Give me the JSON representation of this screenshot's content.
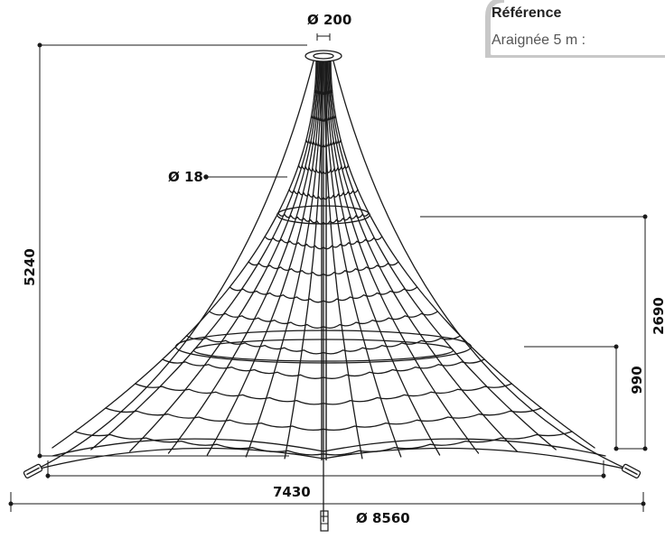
{
  "reference": {
    "title": "Référence",
    "value": "Araignée 5 m :"
  },
  "dimensions": {
    "top_diameter": "Ø 200",
    "rope_diameter": "Ø 18",
    "total_height": "5240",
    "platform_upper_height": "2690",
    "platform_lower_height": "990",
    "anchor_width": "7430",
    "base_diameter": "Ø 8560"
  },
  "colors": {
    "line": "#1a1a1a",
    "ref_border": "#c8c8c8"
  }
}
